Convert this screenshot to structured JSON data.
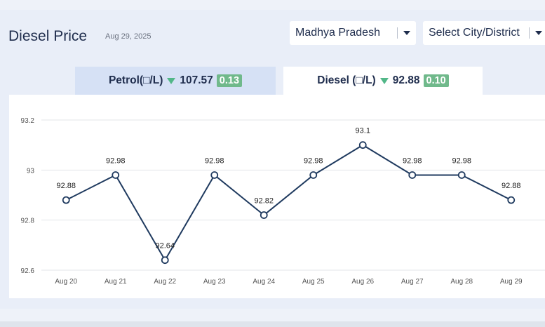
{
  "header": {
    "title": "Diesel Price",
    "date": "Aug 29, 2025",
    "state_select": "Madhya Pradesh",
    "city_select": "Select City/District"
  },
  "tabs": [
    {
      "label": "Petrol(□/L)",
      "price": "107.57",
      "change": "0.13",
      "direction": "down",
      "active": false
    },
    {
      "label": "Diesel (□/L)",
      "price": "92.88",
      "change": "0.10",
      "direction": "down",
      "active": true
    }
  ],
  "colors": {
    "line": "#1f3a5f",
    "badge": "#70b98b",
    "arrow": "#52b788",
    "active_tab": "#ffffff",
    "inactive_tab": "#d6e1f5"
  },
  "chart_data": {
    "type": "line",
    "categories": [
      "Aug 20",
      "Aug 21",
      "Aug 22",
      "Aug 23",
      "Aug 24",
      "Aug 25",
      "Aug 26",
      "Aug 27",
      "Aug 28",
      "Aug 29"
    ],
    "series": [
      {
        "name": "Diesel",
        "values": [
          92.88,
          92.98,
          92.64,
          92.98,
          92.82,
          92.98,
          93.1,
          92.98,
          92.98,
          92.88
        ]
      }
    ],
    "data_labels": [
      "92.88",
      "92.98",
      "92.64",
      "92.98",
      "92.82",
      "92.98",
      "93.1",
      "92.98",
      "92.98",
      "92.88"
    ],
    "yticks": [
      92.6,
      92.8,
      93,
      93.2
    ],
    "ytick_labels": [
      "92.6",
      "92.8",
      "93",
      "93.2"
    ],
    "ylim": [
      92.6,
      93.2
    ],
    "grid": true,
    "title": "",
    "xlabel": "",
    "ylabel": ""
  }
}
